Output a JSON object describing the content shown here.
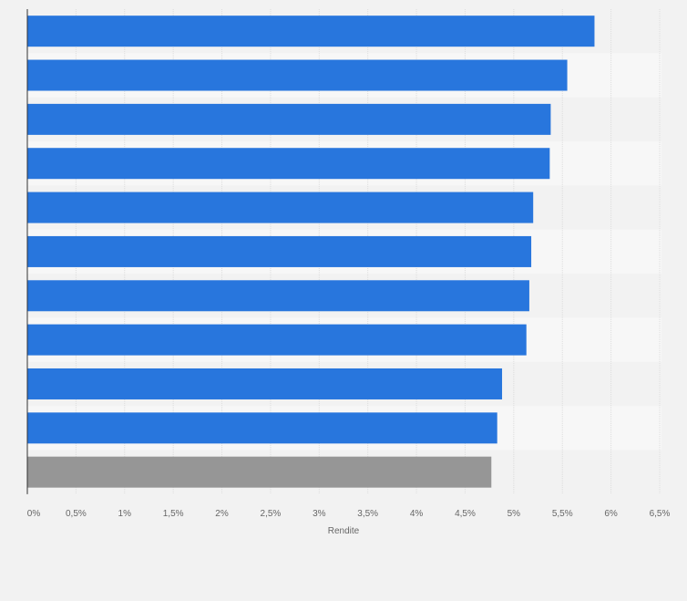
{
  "chart_data": {
    "type": "bar",
    "orientation": "horizontal",
    "xlabel": "Rendite",
    "xlim": [
      0,
      6.5
    ],
    "x_ticks": [
      0,
      0.5,
      1,
      1.5,
      2,
      2.5,
      3,
      3.5,
      4,
      4.5,
      5,
      5.5,
      6,
      6.5
    ],
    "x_tick_labels": [
      "0%",
      "0,5%",
      "1%",
      "1,5%",
      "2%",
      "2,5%",
      "3%",
      "3,5%",
      "4%",
      "4,5%",
      "5%",
      "5,5%",
      "6%",
      "6,5%"
    ],
    "category_labels_visible": false,
    "grid": true,
    "values": [
      5.83,
      5.55,
      5.38,
      5.37,
      5.2,
      5.18,
      5.16,
      5.13,
      4.88,
      4.83,
      4.77
    ],
    "bar_colors": [
      "#2876dd",
      "#2876dd",
      "#2876dd",
      "#2876dd",
      "#2876dd",
      "#2876dd",
      "#2876dd",
      "#2876dd",
      "#2876dd",
      "#2876dd",
      "#969696"
    ]
  },
  "colors": {
    "background": "#f2f2f2",
    "plot_band_light": "#f7f7f7",
    "plot_band_dark": "#f2f2f2",
    "gridline": "#dddddd",
    "axis_line": "#333333",
    "text": "#666666"
  }
}
